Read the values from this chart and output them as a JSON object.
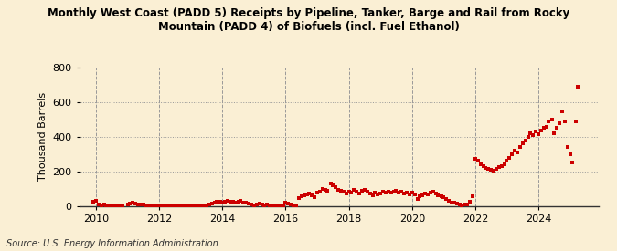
{
  "title": "Monthly West Coast (PADD 5) Receipts by Pipeline, Tanker, Barge and Rail from Rocky\nMountain (PADD 4) of Biofuels (incl. Fuel Ethanol)",
  "ylabel": "Thousand Barrels",
  "source": "Source: U.S. Energy Information Administration",
  "background_color": "#faefd4",
  "marker_color": "#cc0000",
  "xlim_start": 2009.5,
  "xlim_end": 2025.9,
  "ylim": [
    0,
    800
  ],
  "yticks": [
    0,
    200,
    400,
    600,
    800
  ],
  "xticks": [
    2010,
    2012,
    2014,
    2016,
    2018,
    2020,
    2022,
    2024
  ],
  "data": [
    [
      2009.92,
      25
    ],
    [
      2010.0,
      30
    ],
    [
      2010.08,
      10
    ],
    [
      2010.17,
      5
    ],
    [
      2010.25,
      8
    ],
    [
      2010.33,
      5
    ],
    [
      2010.42,
      5
    ],
    [
      2010.5,
      3
    ],
    [
      2010.58,
      5
    ],
    [
      2010.67,
      3
    ],
    [
      2010.75,
      5
    ],
    [
      2010.83,
      3
    ],
    [
      2011.0,
      10
    ],
    [
      2011.08,
      15
    ],
    [
      2011.17,
      20
    ],
    [
      2011.25,
      15
    ],
    [
      2011.33,
      10
    ],
    [
      2011.42,
      10
    ],
    [
      2011.5,
      8
    ],
    [
      2011.58,
      5
    ],
    [
      2011.67,
      5
    ],
    [
      2011.75,
      3
    ],
    [
      2011.83,
      5
    ],
    [
      2011.92,
      2
    ],
    [
      2012.0,
      5
    ],
    [
      2012.08,
      3
    ],
    [
      2012.17,
      2
    ],
    [
      2012.25,
      3
    ],
    [
      2012.33,
      2
    ],
    [
      2012.42,
      5
    ],
    [
      2012.5,
      3
    ],
    [
      2012.58,
      2
    ],
    [
      2012.67,
      3
    ],
    [
      2012.75,
      2
    ],
    [
      2012.83,
      3
    ],
    [
      2012.92,
      2
    ],
    [
      2013.0,
      3
    ],
    [
      2013.08,
      2
    ],
    [
      2013.17,
      2
    ],
    [
      2013.25,
      3
    ],
    [
      2013.33,
      2
    ],
    [
      2013.42,
      5
    ],
    [
      2013.5,
      5
    ],
    [
      2013.58,
      10
    ],
    [
      2013.67,
      15
    ],
    [
      2013.75,
      18
    ],
    [
      2013.83,
      22
    ],
    [
      2013.92,
      25
    ],
    [
      2014.0,
      20
    ],
    [
      2014.08,
      25
    ],
    [
      2014.17,
      28
    ],
    [
      2014.25,
      22
    ],
    [
      2014.33,
      25
    ],
    [
      2014.42,
      20
    ],
    [
      2014.5,
      25
    ],
    [
      2014.58,
      28
    ],
    [
      2014.67,
      20
    ],
    [
      2014.75,
      18
    ],
    [
      2014.83,
      12
    ],
    [
      2014.92,
      8
    ],
    [
      2015.0,
      5
    ],
    [
      2015.08,
      8
    ],
    [
      2015.17,
      12
    ],
    [
      2015.25,
      10
    ],
    [
      2015.33,
      5
    ],
    [
      2015.42,
      8
    ],
    [
      2015.5,
      5
    ],
    [
      2015.58,
      3
    ],
    [
      2015.67,
      5
    ],
    [
      2015.75,
      3
    ],
    [
      2015.83,
      2
    ],
    [
      2015.92,
      3
    ],
    [
      2016.0,
      18
    ],
    [
      2016.08,
      12
    ],
    [
      2016.17,
      8
    ],
    [
      2016.25,
      -5
    ],
    [
      2016.33,
      5
    ],
    [
      2016.42,
      45
    ],
    [
      2016.5,
      55
    ],
    [
      2016.58,
      60
    ],
    [
      2016.67,
      65
    ],
    [
      2016.75,
      70
    ],
    [
      2016.83,
      60
    ],
    [
      2016.92,
      50
    ],
    [
      2017.0,
      75
    ],
    [
      2017.08,
      80
    ],
    [
      2017.17,
      100
    ],
    [
      2017.25,
      95
    ],
    [
      2017.33,
      85
    ],
    [
      2017.42,
      130
    ],
    [
      2017.5,
      120
    ],
    [
      2017.58,
      110
    ],
    [
      2017.67,
      95
    ],
    [
      2017.75,
      85
    ],
    [
      2017.83,
      80
    ],
    [
      2017.92,
      70
    ],
    [
      2018.0,
      80
    ],
    [
      2018.08,
      75
    ],
    [
      2018.17,
      90
    ],
    [
      2018.25,
      80
    ],
    [
      2018.33,
      70
    ],
    [
      2018.42,
      85
    ],
    [
      2018.5,
      90
    ],
    [
      2018.58,
      80
    ],
    [
      2018.67,
      70
    ],
    [
      2018.75,
      60
    ],
    [
      2018.83,
      75
    ],
    [
      2018.92,
      65
    ],
    [
      2019.0,
      70
    ],
    [
      2019.08,
      80
    ],
    [
      2019.17,
      75
    ],
    [
      2019.25,
      80
    ],
    [
      2019.33,
      75
    ],
    [
      2019.42,
      80
    ],
    [
      2019.5,
      85
    ],
    [
      2019.58,
      75
    ],
    [
      2019.67,
      80
    ],
    [
      2019.75,
      70
    ],
    [
      2019.83,
      75
    ],
    [
      2019.92,
      65
    ],
    [
      2020.0,
      75
    ],
    [
      2020.08,
      65
    ],
    [
      2020.17,
      40
    ],
    [
      2020.25,
      55
    ],
    [
      2020.33,
      60
    ],
    [
      2020.42,
      70
    ],
    [
      2020.5,
      65
    ],
    [
      2020.58,
      75
    ],
    [
      2020.67,
      80
    ],
    [
      2020.75,
      70
    ],
    [
      2020.83,
      60
    ],
    [
      2020.92,
      55
    ],
    [
      2021.0,
      50
    ],
    [
      2021.08,
      40
    ],
    [
      2021.17,
      30
    ],
    [
      2021.25,
      20
    ],
    [
      2021.33,
      18
    ],
    [
      2021.42,
      12
    ],
    [
      2021.5,
      8
    ],
    [
      2021.58,
      5
    ],
    [
      2021.67,
      8
    ],
    [
      2021.75,
      10
    ],
    [
      2021.83,
      25
    ],
    [
      2021.92,
      55
    ],
    [
      2022.0,
      270
    ],
    [
      2022.08,
      260
    ],
    [
      2022.17,
      240
    ],
    [
      2022.25,
      230
    ],
    [
      2022.33,
      220
    ],
    [
      2022.42,
      215
    ],
    [
      2022.5,
      210
    ],
    [
      2022.58,
      205
    ],
    [
      2022.67,
      215
    ],
    [
      2022.75,
      225
    ],
    [
      2022.83,
      230
    ],
    [
      2022.92,
      240
    ],
    [
      2023.0,
      260
    ],
    [
      2023.08,
      280
    ],
    [
      2023.17,
      300
    ],
    [
      2023.25,
      320
    ],
    [
      2023.33,
      310
    ],
    [
      2023.42,
      340
    ],
    [
      2023.5,
      360
    ],
    [
      2023.58,
      380
    ],
    [
      2023.67,
      400
    ],
    [
      2023.75,
      420
    ],
    [
      2023.83,
      410
    ],
    [
      2023.92,
      430
    ],
    [
      2024.0,
      415
    ],
    [
      2024.08,
      435
    ],
    [
      2024.17,
      450
    ],
    [
      2024.25,
      460
    ],
    [
      2024.33,
      490
    ],
    [
      2024.42,
      500
    ],
    [
      2024.5,
      420
    ],
    [
      2024.58,
      450
    ],
    [
      2024.67,
      480
    ],
    [
      2024.75,
      550
    ],
    [
      2024.83,
      490
    ],
    [
      2024.92,
      340
    ],
    [
      2025.0,
      300
    ],
    [
      2025.08,
      250
    ],
    [
      2025.17,
      490
    ],
    [
      2025.25,
      690
    ]
  ]
}
